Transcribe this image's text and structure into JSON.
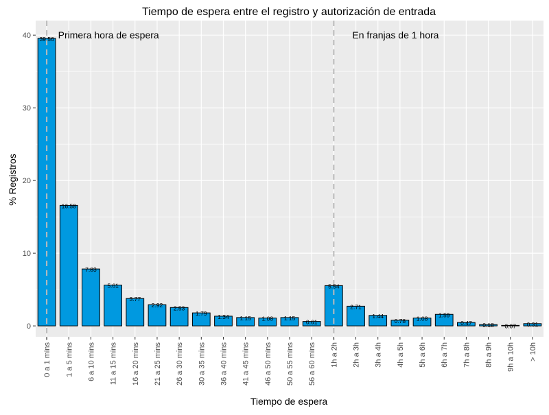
{
  "chart_data": {
    "type": "bar",
    "title": "Tiempo de espera entre el registro y autorización de entrada",
    "xlabel": "Tiempo de espera",
    "ylabel": "% Registros",
    "ylim": [
      -1.5,
      42
    ],
    "yticks": [
      0,
      10,
      20,
      30,
      40
    ],
    "grid": true,
    "bar_color": "#0099e0",
    "bar_outline": "#000000",
    "panel_bg": "#ebebeb",
    "grid_color": "#ffffff",
    "vline_color": "#bbbbbb",
    "categories": [
      "0 a 1 mins",
      "1 a 5 mins",
      "6 a 10 mins",
      "11 a 15 mins",
      "16 a 20 mins",
      "21 a 25 mins",
      "26 a 30 mins",
      "30 a 35 mins",
      "36 a 40 mins",
      "41 a 45 mins",
      "46 a 50 mins",
      "50 a 55 mins",
      "56 a 60 mins",
      "1h a 2h",
      "2h a 3h",
      "3h a 4h",
      "4h a 5h",
      "5h a 6h",
      "6h a 7h",
      "7h a 8h",
      "8h a 9h",
      "9h a 10h",
      "> 10h"
    ],
    "values": [
      39.56,
      16.58,
      7.83,
      5.61,
      3.77,
      2.92,
      2.53,
      1.79,
      1.34,
      1.15,
      1.08,
      1.15,
      0.61,
      5.54,
      2.71,
      1.44,
      0.78,
      1.08,
      1.59,
      0.47,
      0.18,
      0.07,
      0.31
    ],
    "value_labels": [
      "39.56",
      "16.58",
      "7.83",
      "5.61",
      "3.77",
      "2.92",
      "2.53",
      "1.79",
      "1.34",
      "1.15",
      "1.08",
      "1.15",
      "0.61",
      "5.54",
      "2.71",
      "1.44",
      "0.78",
      "1.08",
      "1.59",
      "0.47",
      "0.18",
      "0.07",
      "0.31"
    ],
    "vlines_at_category": [
      "0 a 1 mins",
      "1h a 2h"
    ],
    "annotations": [
      {
        "text": "Primera hora de espera",
        "near_category": "6 a 10 mins",
        "at_y": 40
      },
      {
        "text": "En franjas de 1 hora",
        "near_category": "3h a 4h",
        "at_y": 40
      }
    ]
  }
}
